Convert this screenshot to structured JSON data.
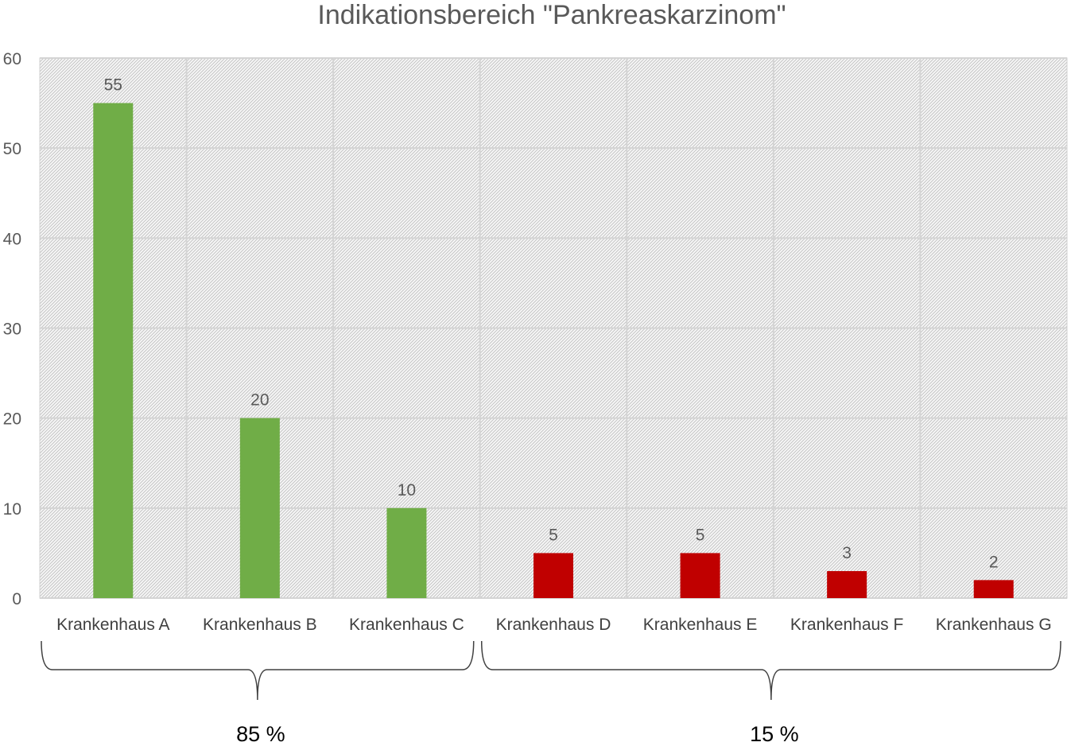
{
  "chart_data": {
    "type": "bar",
    "title": "Indikationsbereich \"Pankreaskarzinom\"",
    "xlabel": "",
    "ylabel": "",
    "categories": [
      "Krankenhaus A",
      "Krankenhaus B",
      "Krankenhaus C",
      "Krankenhaus D",
      "Krankenhaus E",
      "Krankenhaus F",
      "Krankenhaus G"
    ],
    "values": [
      55,
      20,
      10,
      5,
      5,
      3,
      2
    ],
    "bar_colors": [
      "#70ad47",
      "#70ad47",
      "#70ad47",
      "#c00000",
      "#c00000",
      "#c00000",
      "#c00000"
    ],
    "ylim": [
      0,
      60
    ],
    "yticks": [
      0,
      10,
      20,
      30,
      40,
      50,
      60
    ],
    "grid": true,
    "legend": "none",
    "data_labels": true,
    "groups": [
      {
        "label": "85 %",
        "from": 0,
        "to": 2
      },
      {
        "label": "15 %",
        "from": 3,
        "to": 6
      }
    ]
  }
}
